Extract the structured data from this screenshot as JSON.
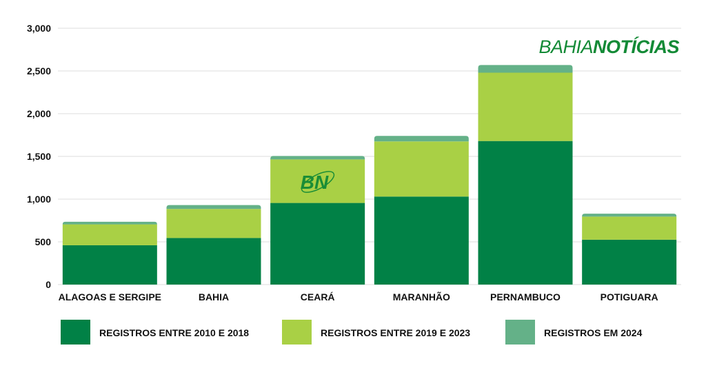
{
  "brand": {
    "light": "BAHIA",
    "bold": "NOTÍCIAS",
    "mark": "BN",
    "color": "#138a36"
  },
  "chart_data": {
    "type": "bar",
    "stacked": true,
    "categories": [
      "ALAGOAS E SERGIPE",
      "BAHIA",
      "CEARÁ",
      "MARANHÃO",
      "PERNAMBUCO",
      "POTIGUARA"
    ],
    "series": [
      {
        "name": "REGISTROS ENTRE 2010 E 2018",
        "color": "#018146",
        "values": [
          460,
          545,
          955,
          1030,
          1680,
          525
        ]
      },
      {
        "name": "REGISTROS ENTRE 2019 E 2023",
        "color": "#a9d045",
        "values": [
          245,
          340,
          510,
          645,
          800,
          270
        ]
      },
      {
        "name": "REGISTROS EM 2024",
        "color": "#64b188",
        "values": [
          30,
          45,
          40,
          65,
          90,
          35
        ]
      }
    ],
    "ylim": [
      0,
      3000
    ],
    "yticks": [
      0,
      500,
      1000,
      1500,
      2000,
      2500,
      3000
    ],
    "ytick_labels": [
      "0",
      "500",
      "1,000",
      "1,500",
      "2,000",
      "2,500",
      "3,000"
    ],
    "grid": true,
    "legend_position": "bottom",
    "title": "",
    "xlabel": "",
    "ylabel": ""
  }
}
